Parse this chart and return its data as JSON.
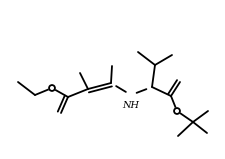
{
  "bg_color": "#ffffff",
  "line_color": "#000000",
  "lw": 1.3,
  "fig_width": 2.26,
  "fig_height": 1.59,
  "dpi": 100,
  "NH_fontsize": 7.0,
  "O_circle_r": 0.013
}
